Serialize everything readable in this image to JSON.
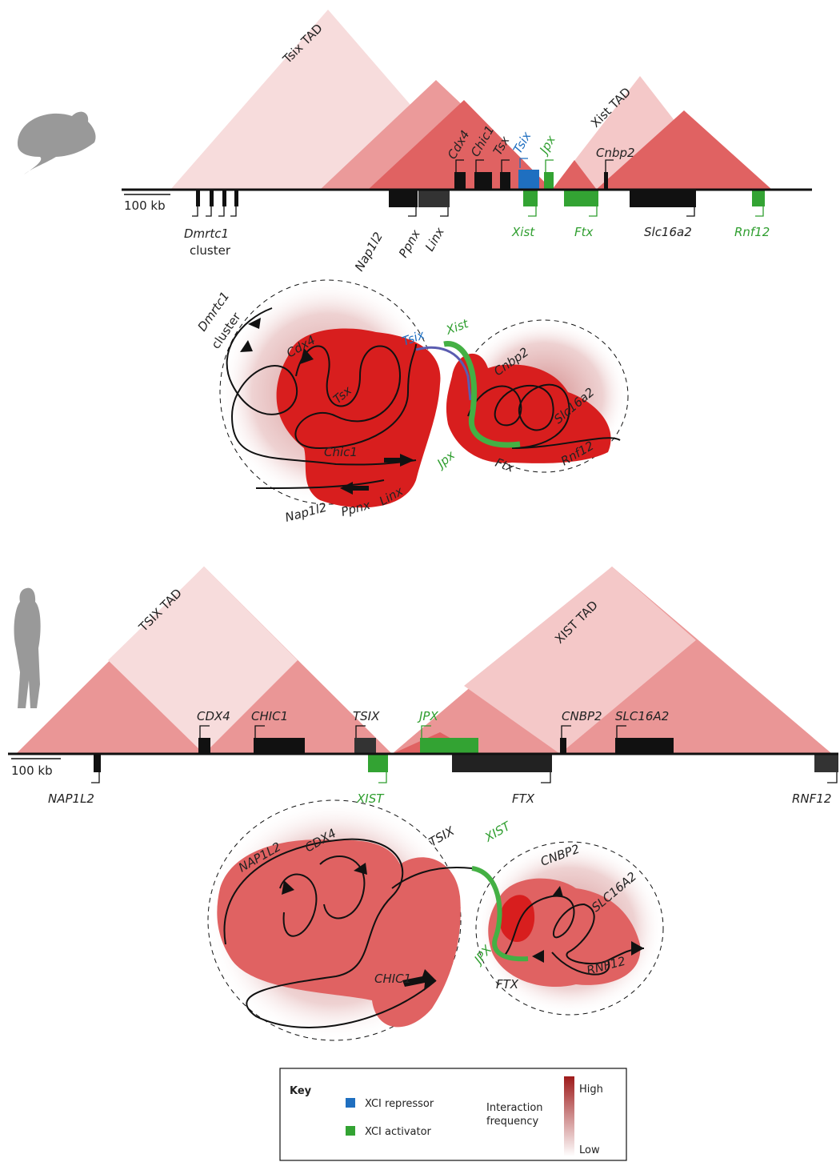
{
  "mouse": {
    "linear": {
      "tad_labels": [
        "Tsix TAD",
        "Xist TAD"
      ],
      "scale_bar": "100 kb",
      "genes_above": [
        "Cdx4",
        "Chic1",
        "Tsx",
        "Tsix",
        "Jpx",
        "Cnbp2"
      ],
      "genes_below": [
        "Dmrtc1",
        "cluster",
        "Nap1l2",
        "Ppnx",
        "Linx",
        "Xist",
        "Ftx",
        "Slc16a2",
        "Rnf12"
      ]
    },
    "model": {
      "labels": [
        "Dmrtc1",
        "cluster",
        "Cdx4",
        "Tsx",
        "Tsix",
        "Xist",
        "Cnbp2",
        "Slc16a2",
        "Chic1",
        "Jpx",
        "Ftx",
        "Rnf12",
        "Nap1l2",
        "Ppnx",
        "Linx"
      ]
    }
  },
  "human": {
    "linear": {
      "tad_labels": [
        "TSIX TAD",
        "XIST TAD"
      ],
      "scale_bar": "100 kb",
      "genes_above": [
        "CDX4",
        "CHIC1",
        "TSIX",
        "JPX",
        "CNBP2",
        "SLC16A2"
      ],
      "genes_below": [
        "NAP1L2",
        "XIST",
        "FTX",
        "RNF12"
      ]
    },
    "model": {
      "labels": [
        "NAP1L2",
        "CDX4",
        "TSIX",
        "XIST",
        "CNBP2",
        "SLC16A2",
        "JPX",
        "FTX",
        "RNF12",
        "CHIC1"
      ]
    }
  },
  "key": {
    "title": "Key",
    "items": [
      "XCI repressor",
      "XCI activator"
    ],
    "gradient_label": [
      "Interaction",
      "frequency"
    ],
    "high": "High",
    "low": "Low"
  }
}
